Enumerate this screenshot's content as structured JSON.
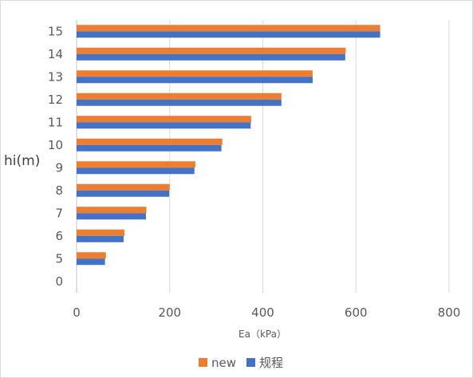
{
  "chart_data": {
    "type": "bar",
    "orientation": "horizontal",
    "categories": [
      "0",
      "5",
      "6",
      "7",
      "8",
      "9",
      "10",
      "11",
      "12",
      "13",
      "14",
      "15"
    ],
    "series": [
      {
        "name": "new",
        "color": "#ed7d31",
        "values": [
          0,
          63,
          103,
          150,
          200,
          255,
          313,
          375,
          440,
          507,
          578,
          652
        ]
      },
      {
        "name": "规程",
        "color": "#4472c4",
        "values": [
          0,
          61,
          101,
          149,
          199,
          253,
          311,
          374,
          440,
          507,
          577,
          652
        ]
      }
    ],
    "xlim": [
      0,
      800
    ],
    "xticks": [
      "0",
      "200",
      "400",
      "600",
      "800"
    ],
    "xlabel": "Ea（kPa）",
    "ylabel": "hi(m)",
    "grid": true,
    "legend_position": "bottom"
  }
}
